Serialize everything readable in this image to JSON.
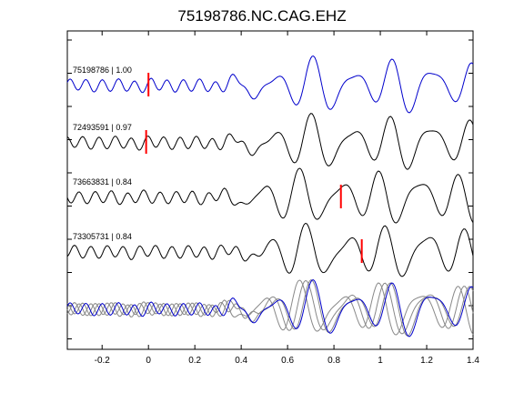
{
  "chart_data": {
    "type": "line",
    "title": "75198786.NC.CAG.EHZ",
    "xlabel": "",
    "ylabel": "",
    "xlim": [
      -0.35,
      1.4
    ],
    "x_ticks": [
      -0.2,
      0,
      0.2,
      0.4,
      0.6,
      0.8,
      1,
      1.2,
      1.4
    ],
    "x_tick_labels": [
      "-0.2",
      "0",
      "0.2",
      "0.4",
      "0.6",
      "0.8",
      "1",
      "1.2",
      "1.4"
    ],
    "grid": false,
    "colors": {
      "reference": "#0000cc",
      "trace": "#000000",
      "overlay": "#888888",
      "pick": "#ff0000"
    },
    "traces": [
      {
        "label": "75198786 | 1.00",
        "pick_time": 0.0,
        "color": "#0000cc"
      },
      {
        "label": "72493591 | 0.97",
        "pick_time": -0.01,
        "color": "#000000"
      },
      {
        "label": "73663831 | 0.84",
        "pick_time": 0.83,
        "color": "#000000"
      },
      {
        "label": "73305731 | 0.84",
        "pick_time": 0.92,
        "color": "#000000"
      }
    ]
  }
}
